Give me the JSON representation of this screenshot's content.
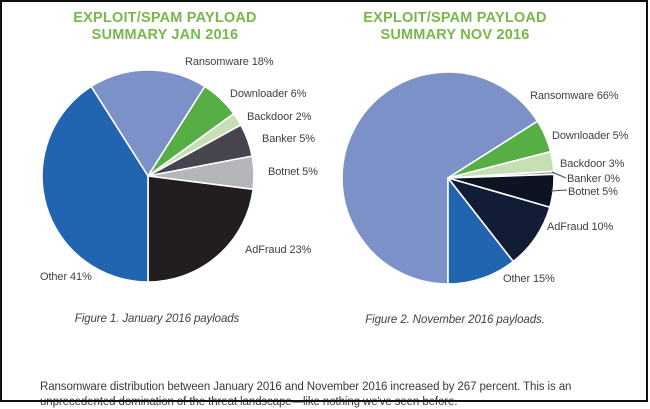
{
  "palette": {
    "title_green": "#76b84b",
    "label_text": "#414042",
    "separator_white": "#ffffff",
    "leader_line": "#4a4a4e",
    "frame_border": "#101010"
  },
  "chart_data": [
    {
      "type": "pie",
      "title": "EXPLOIT/SPAM PAYLOAD SUMMARY JAN 2016",
      "caption": "Figure 1. January 2016 payloads",
      "rotation_deg": -32.4,
      "legend_position": "around",
      "slices": [
        {
          "label": "Ransomware",
          "pct": 18,
          "display": "Ransomware 18%",
          "color": "#7b91c7"
        },
        {
          "label": "Downloader",
          "pct": 6,
          "display": "Downloader 6%",
          "color": "#56ae45"
        },
        {
          "label": "Backdoor",
          "pct": 2,
          "display": "Backdoor 2%",
          "color": "#c7dfb4"
        },
        {
          "label": "Banker",
          "pct": 5,
          "display": "Banker 5%",
          "color": "#46454f"
        },
        {
          "label": "Botnet",
          "pct": 5,
          "display": "Botnet 5%",
          "color": "#b4b6b9"
        },
        {
          "label": "AdFraud",
          "pct": 23,
          "display": "AdFraud 23%",
          "color": "#221e1f"
        },
        {
          "label": "Other",
          "pct": 41,
          "display": "Other 41%",
          "color": "#2164b0"
        }
      ]
    },
    {
      "type": "pie",
      "title": "EXPLOIT/SPAM PAYLOAD SUMMARY NOV 2016",
      "caption": "Figure 2. November 2016 payloads.",
      "rotation_deg": 180,
      "legend_position": "around",
      "slices": [
        {
          "label": "Ransomware",
          "pct": 66,
          "display": "Ransomware 66%",
          "color": "#7b91c7"
        },
        {
          "label": "Downloader",
          "pct": 5,
          "display": "Downloader 5%",
          "color": "#56ae45"
        },
        {
          "label": "Backdoor",
          "pct": 3,
          "display": "Backdoor 3%",
          "color": "#c7dfb4"
        },
        {
          "label": "Banker",
          "pct": 0,
          "draw_pct": 0.45,
          "display": "Banker 0%",
          "color": "#94959a"
        },
        {
          "label": "Botnet",
          "pct": 5,
          "display": "Botnet 5%",
          "color": "#0d1322"
        },
        {
          "label": "AdFraud",
          "pct": 10,
          "display": "AdFraud 10%",
          "color": "#131c35"
        },
        {
          "label": "Other",
          "pct": 15,
          "display": "Other 15%",
          "color": "#2164b0"
        }
      ]
    }
  ],
  "footer": {
    "text": "Ransomware distribution between January 2016 and November 2016 increased by 267 percent. This is an unprecedented domination of the threat landscape—like nothing we've seen before."
  }
}
